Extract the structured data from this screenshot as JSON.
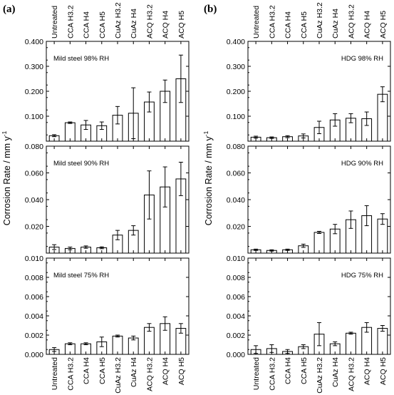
{
  "figure": {
    "panel_a_tag": "(a)",
    "panel_b_tag": "(b)",
    "ylabel_main": "Corrosion Rate / mm y",
    "ylabel_sup": "-1",
    "categories_a": [
      "Untreated",
      "CCA H3.2",
      "CCA H4",
      "CCA H5",
      "CuAz H3.2",
      "CuAz H4",
      "ACQ H3.2",
      "ACQ H4",
      "ACQ H5"
    ],
    "categories_b": [
      "Untreated",
      "CCA H3.2",
      "CCA H4",
      "CCA H5",
      "CuAz H3.2",
      "CuAz H4",
      "ACQ H3.2",
      "ACQ H4",
      "ACQ H5"
    ]
  },
  "chart_data": [
    {
      "type": "bar",
      "panel": "a",
      "title": "Mild steel 98% RH",
      "categories": [
        "Untreated",
        "CCA H3.2",
        "CCA H4",
        "CCA H5",
        "CuAz H3.2",
        "CuAz H4",
        "ACQ H3.2",
        "ACQ H4",
        "ACQ H5"
      ],
      "values": [
        0.022,
        0.074,
        0.065,
        0.062,
        0.104,
        0.112,
        0.157,
        0.2,
        0.25
      ],
      "errors": [
        0.004,
        0.003,
        0.018,
        0.015,
        0.035,
        0.102,
        0.04,
        0.045,
        0.095
      ],
      "ylim": [
        0,
        0.4
      ],
      "yticks": [
        "",
        "0.100",
        "0.200",
        "0.300",
        "0.400"
      ]
    },
    {
      "type": "bar",
      "panel": "a",
      "title": "Mild steel 90% RH",
      "categories": [
        "Untreated",
        "CCA H3.2",
        "CCA H4",
        "CCA H5",
        "CuAz H3.2",
        "CuAz H4",
        "ACQ H3.2",
        "ACQ H4",
        "ACQ H5"
      ],
      "values": [
        0.0045,
        0.0035,
        0.0045,
        0.004,
        0.0135,
        0.017,
        0.0435,
        0.0495,
        0.0555
      ],
      "errors": [
        0.0018,
        0.001,
        0.0009,
        0.0007,
        0.0035,
        0.0035,
        0.018,
        0.015,
        0.0125
      ],
      "ylim": [
        0,
        0.08
      ],
      "yticks": [
        "",
        "0.020",
        "0.040",
        "0.060",
        "0.080"
      ]
    },
    {
      "type": "bar",
      "panel": "a",
      "title": "Mild steel 75% RH",
      "categories": [
        "Untreated",
        "CCA H3.2",
        "CCA H4",
        "CCA H5",
        "CuAz H3.2",
        "CuAz H4",
        "ACQ H3.2",
        "ACQ H4",
        "ACQ H5"
      ],
      "values": [
        0.0005,
        0.0011,
        0.0011,
        0.0013,
        0.0019,
        0.0017,
        0.0028,
        0.0032,
        0.0027
      ],
      "errors": [
        0.0002,
        0.0001,
        0.0001,
        0.0005,
        0.0001,
        0.0002,
        0.0004,
        0.0007,
        0.0005
      ],
      "ylim": [
        0,
        0.01
      ],
      "yticks": [
        "0.000",
        "0.002",
        "0.004",
        "0.006",
        "0.008",
        "0.010"
      ]
    },
    {
      "type": "bar",
      "panel": "b",
      "title": "HDG 98% RH",
      "categories": [
        "Untreated",
        "CCA H3.2",
        "CCA H4",
        "CCA H5",
        "CuAz H3.2",
        "CuAz H4",
        "ACQ H3.2",
        "ACQ H4",
        "ACQ H5"
      ],
      "values": [
        0.016,
        0.014,
        0.018,
        0.021,
        0.055,
        0.085,
        0.092,
        0.09,
        0.188
      ],
      "errors": [
        0.004,
        0.003,
        0.004,
        0.008,
        0.025,
        0.025,
        0.018,
        0.027,
        0.03
      ],
      "ylim": [
        0,
        0.4
      ],
      "yticks": [
        "",
        "0.100",
        "0.200",
        "0.300",
        "0.400"
      ]
    },
    {
      "type": "bar",
      "panel": "b",
      "title": "HDG 90% RH",
      "categories": [
        "Untreated",
        "CCA H3.2",
        "CCA H4",
        "CCA H5",
        "CuAz H3.2",
        "CuAz H4",
        "ACQ H3.2",
        "ACQ H4",
        "ACQ H5"
      ],
      "values": [
        0.0025,
        0.002,
        0.0025,
        0.0055,
        0.0155,
        0.018,
        0.025,
        0.028,
        0.0255
      ],
      "errors": [
        0.0005,
        0.0005,
        0.0005,
        0.0012,
        0.0008,
        0.0035,
        0.0065,
        0.0075,
        0.004
      ],
      "ylim": [
        0,
        0.08
      ],
      "yticks": [
        "",
        "0.020",
        "0.040",
        "0.060",
        "0.080"
      ]
    },
    {
      "type": "bar",
      "panel": "b",
      "title": "HDG 75% RH",
      "categories": [
        "Untreated",
        "CCA H3.2",
        "CCA H4",
        "CCA H5",
        "CuAz H3.2",
        "CuAz H4",
        "ACQ H3.2",
        "ACQ H4",
        "ACQ H5"
      ],
      "values": [
        0.0005,
        0.0006,
        0.0003,
        0.0008,
        0.0021,
        0.0011,
        0.0022,
        0.0028,
        0.0027
      ],
      "errors": [
        0.0004,
        0.0004,
        0.0002,
        0.0002,
        0.0012,
        0.0002,
        0.0001,
        0.0005,
        0.0003
      ],
      "ylim": [
        0,
        0.01
      ],
      "yticks": [
        "0.000",
        "0.002",
        "0.004",
        "0.006",
        "0.008",
        "0.010"
      ]
    }
  ]
}
